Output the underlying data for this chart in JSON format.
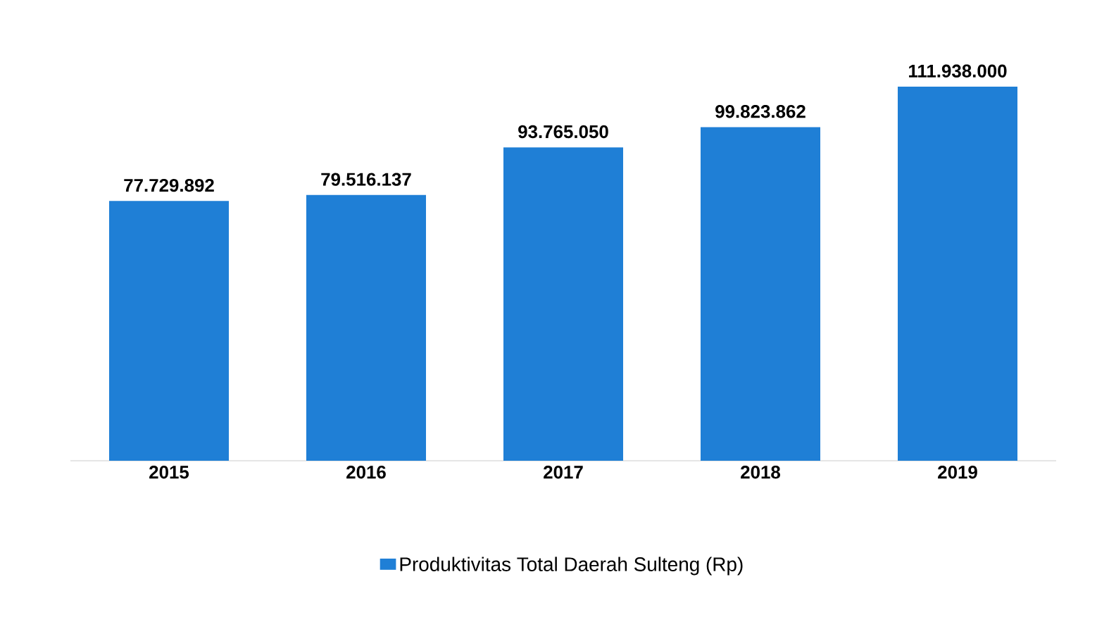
{
  "chart_data": {
    "type": "bar",
    "categories": [
      "2015",
      "2016",
      "2017",
      "2018",
      "2019"
    ],
    "series": [
      {
        "name": "Produktivitas Total Daerah Sulteng (Rp)",
        "color": "#1f7fd6",
        "values": [
          77729892,
          79516137,
          93765050,
          99823862,
          111938000
        ],
        "value_labels": [
          "77.729.892",
          "79.516.137",
          "93.765.050",
          "99.823.862",
          "111.938.000"
        ]
      }
    ],
    "legend": "bottom"
  }
}
